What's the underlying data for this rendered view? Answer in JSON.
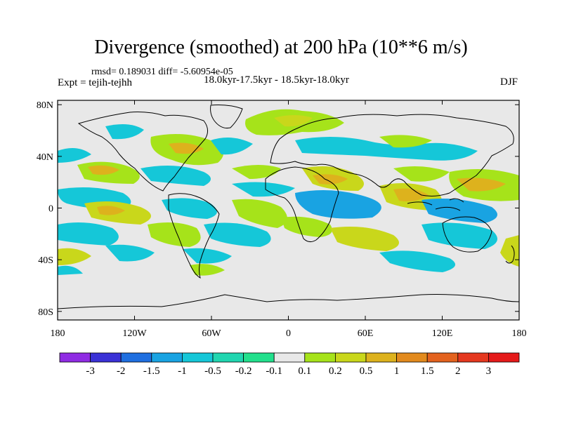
{
  "title": "Divergence (smoothed) at 200 hPa (10**6 m/s)",
  "stats": "rmsd= 0.189031 diff= -5.60954e-05",
  "experiment": "Expt = tejih-tejhh",
  "period": "18.0kyr-17.5kyr - 18.5kyr-18.0kyr",
  "season": "DJF",
  "map": {
    "ocean_land_fill": "#e8e8e8",
    "lat_tick_labels": [
      "80N",
      "40N",
      "0",
      "40S",
      "80S"
    ],
    "lat_tick_values": [
      80,
      40,
      0,
      -40,
      -80
    ],
    "lon_tick_labels": [
      "180",
      "120W",
      "60W",
      "0",
      "60E",
      "120E",
      "180"
    ],
    "lon_tick_values": [
      -180,
      -120,
      -60,
      0,
      60,
      120,
      180
    ]
  },
  "colorbar": {
    "labels": [
      "-3",
      "-2",
      "-1.5",
      "-1",
      "-0.5",
      "-0.2",
      "-0.1",
      "0.1",
      "0.2",
      "0.5",
      "1",
      "1.5",
      "2",
      "3"
    ],
    "colors": [
      "#8f2be3",
      "#3a31d6",
      "#1f6fe0",
      "#19a3e2",
      "#15c7d8",
      "#20d6b0",
      "#22e08c",
      "#e8e8e8",
      "#a6e31a",
      "#c9d71b",
      "#ddb21d",
      "#e28a1d",
      "#e3621e",
      "#e5381f",
      "#e51a1a"
    ]
  }
}
